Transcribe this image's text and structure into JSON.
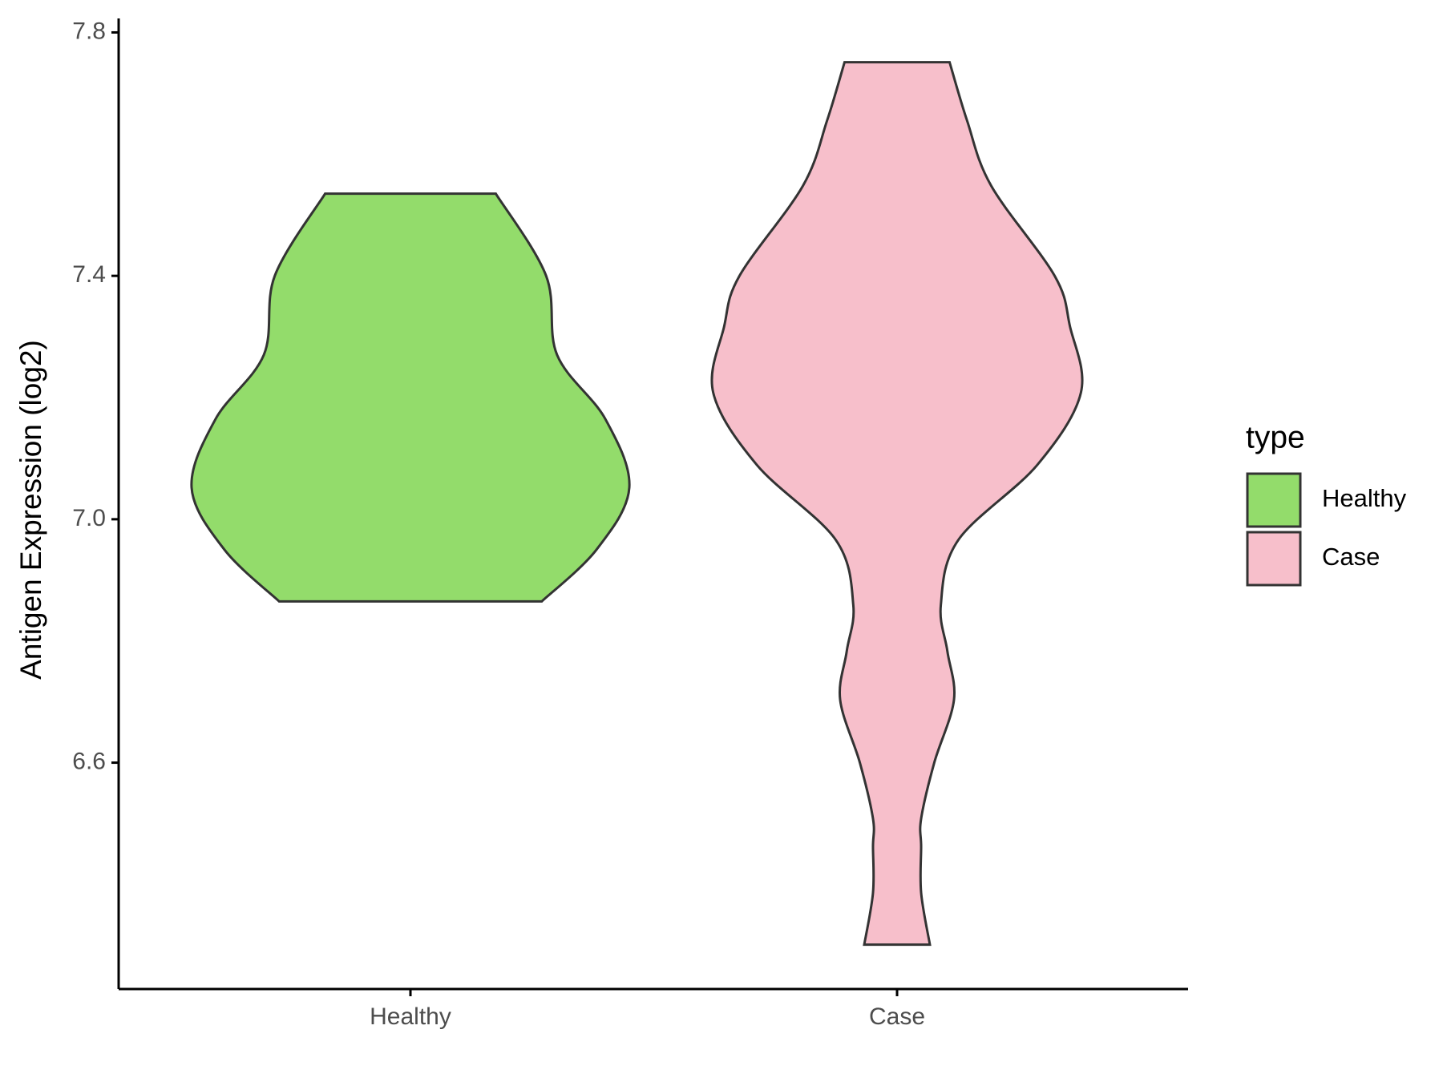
{
  "chart_data": {
    "type": "violin",
    "y_label": "Antigen Expression (log2)",
    "legend_title": "type",
    "categories": [
      "Healthy",
      "Case"
    ],
    "series": [
      {
        "name": "Healthy",
        "color": "#93dc6b",
        "y": [
          6.865,
          6.95,
          7.052,
          7.165,
          7.27,
          7.4,
          7.535
        ],
        "density": [
          0.6,
          0.85,
          1.0,
          0.89,
          0.67,
          0.62,
          0.39
        ]
      },
      {
        "name": "Case",
        "color": "#f7bfcb",
        "y": [
          6.301,
          6.386,
          6.462,
          6.508,
          6.6,
          6.703,
          6.783,
          6.859,
          6.966,
          7.089,
          7.208,
          7.317,
          7.4,
          7.548,
          7.655,
          7.751
        ],
        "density": [
          0.15,
          0.11,
          0.11,
          0.11,
          0.17,
          0.26,
          0.23,
          0.2,
          0.28,
          0.64,
          0.84,
          0.79,
          0.72,
          0.43,
          0.32,
          0.24
        ]
      }
    ],
    "ylim": [
      6.228,
      7.823
    ],
    "yticks": [
      6.6,
      {
        "value": 7,
        "label": "7.0"
      },
      7.4,
      7.8
    ],
    "grid": false
  }
}
